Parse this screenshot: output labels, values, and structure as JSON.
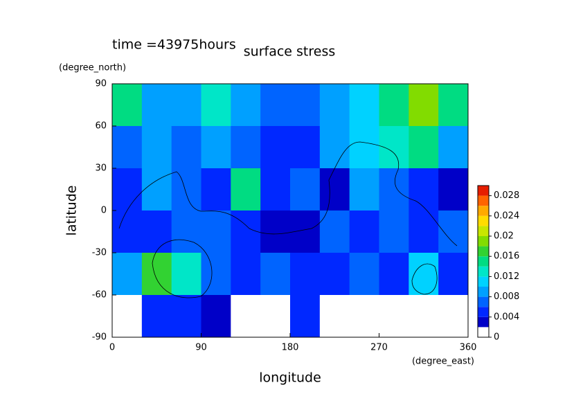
{
  "chart_data": {
    "type": "contourf",
    "title": "surface stress",
    "subtitle": "time =43975hours",
    "xlabel": "longitude",
    "xunit": "(degree_east)",
    "ylabel": "latitude",
    "yunit": "(degree_north)",
    "xlim": [
      0,
      360
    ],
    "xticks": [
      0,
      90,
      180,
      270,
      360
    ],
    "ylim": [
      -90,
      90
    ],
    "yticks": [
      -90,
      -60,
      -30,
      0,
      30,
      60,
      90
    ],
    "x": [
      15,
      45,
      75,
      105,
      135,
      165,
      195,
      225,
      255,
      285,
      315,
      345
    ],
    "y": [
      75,
      45,
      15,
      -15,
      -45,
      -75
    ],
    "z": [
      [
        0.014,
        0.008,
        0.008,
        0.012,
        0.008,
        0.006,
        0.006,
        0.008,
        0.01,
        0.014,
        0.018,
        0.014
      ],
      [
        0.006,
        0.008,
        0.006,
        0.008,
        0.006,
        0.004,
        0.004,
        0.008,
        0.01,
        0.012,
        0.014,
        0.008
      ],
      [
        0.004,
        0.008,
        0.006,
        0.004,
        0.014,
        0.004,
        0.006,
        0.002,
        0.008,
        0.006,
        0.004,
        0.002
      ],
      [
        0.004,
        0.004,
        0.006,
        0.006,
        0.004,
        0.002,
        0.002,
        0.006,
        0.004,
        0.006,
        0.004,
        0.006
      ],
      [
        0.008,
        0.016,
        0.012,
        0.006,
        0.004,
        0.006,
        0.004,
        0.004,
        0.006,
        0.004,
        0.01,
        0.004
      ],
      [
        0,
        0.004,
        0.004,
        0.002,
        0,
        0,
        0.004,
        0,
        0,
        0,
        0,
        0
      ]
    ],
    "levels": [
      0,
      0.002,
      0.004,
      0.006,
      0.008,
      0.01,
      0.012,
      0.014,
      0.016,
      0.018,
      0.02,
      0.022,
      0.024,
      0.026,
      0.028,
      0.03
    ],
    "colors": [
      "#ffffff",
      "#0000c8",
      "#0028ff",
      "#0064ff",
      "#00a0ff",
      "#00d2ff",
      "#00e6c8",
      "#00dc82",
      "#32d232",
      "#82dc00",
      "#c8e600",
      "#ffdc00",
      "#ffaa00",
      "#ff6400",
      "#e61e00"
    ],
    "clim": [
      0,
      0.03
    ],
    "cticks": [
      0,
      0.004,
      0.008,
      0.012,
      0.016,
      0.02,
      0.024,
      0.028
    ]
  }
}
